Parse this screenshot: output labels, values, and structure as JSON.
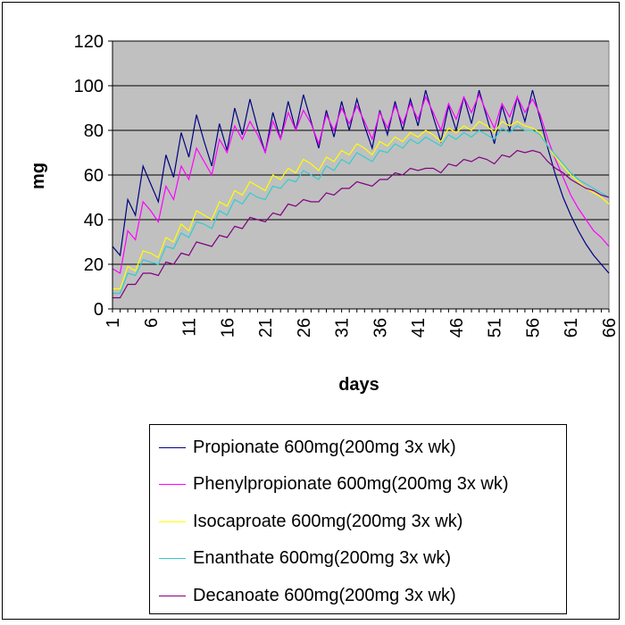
{
  "chart_data": {
    "type": "line",
    "title": "",
    "xlabel": "days",
    "ylabel": "mg",
    "xlim": [
      1,
      66
    ],
    "ylim": [
      0,
      120
    ],
    "yticks": [
      0,
      20,
      40,
      60,
      80,
      100,
      120
    ],
    "xticks": [
      1,
      6,
      11,
      16,
      21,
      26,
      31,
      36,
      41,
      46,
      51,
      56,
      61,
      66
    ],
    "grid": "horizontal",
    "plot_background": "#C0C0C0",
    "legend_position": "bottom",
    "series": [
      {
        "name": "Propionate 600mg(200mg 3x wk)",
        "color": "#000080",
        "values": [
          28,
          24,
          49,
          42,
          64,
          56,
          48,
          69,
          59,
          79,
          68,
          87,
          75,
          64,
          83,
          71,
          90,
          78,
          94,
          81,
          70,
          88,
          76,
          93,
          80,
          96,
          84,
          72,
          89,
          77,
          93,
          80,
          94,
          82,
          72,
          89,
          78,
          93,
          80,
          94,
          82,
          98,
          86,
          75,
          91,
          80,
          95,
          83,
          98,
          86,
          74,
          91,
          80,
          95,
          84,
          98,
          85,
          72,
          60,
          50,
          42,
          35,
          29,
          24,
          20,
          16
        ]
      },
      {
        "name": "Phenylpropionate 600mg(200mg 3x wk)",
        "color": "#FF00FF",
        "values": [
          18,
          16,
          35,
          31,
          48,
          44,
          39,
          55,
          49,
          64,
          58,
          72,
          66,
          60,
          76,
          70,
          82,
          76,
          84,
          78,
          70,
          84,
          76,
          88,
          80,
          89,
          83,
          74,
          87,
          80,
          90,
          83,
          91,
          84,
          76,
          88,
          81,
          91,
          83,
          92,
          85,
          95,
          88,
          80,
          92,
          85,
          95,
          88,
          96,
          88,
          81,
          92,
          86,
          95,
          88,
          94,
          87,
          76,
          67,
          59,
          51,
          45,
          40,
          35,
          32,
          28
        ]
      },
      {
        "name": "Isocaproate 600mg(200mg 3x wk)",
        "color": "#FFFF00",
        "values": [
          9,
          9,
          19,
          17,
          26,
          25,
          23,
          32,
          30,
          38,
          35,
          44,
          42,
          40,
          48,
          46,
          53,
          51,
          57,
          55,
          53,
          60,
          58,
          63,
          61,
          67,
          65,
          62,
          68,
          66,
          71,
          69,
          74,
          72,
          69,
          75,
          73,
          77,
          75,
          79,
          77,
          80,
          78,
          75,
          81,
          79,
          82,
          80,
          84,
          82,
          79,
          84,
          82,
          84,
          82,
          81,
          79,
          73,
          68,
          64,
          60,
          57,
          54,
          52,
          50,
          47
        ]
      },
      {
        "name": "Enanthate 600mg(200mg 3x wk)",
        "color": "#33CCCC",
        "values": [
          7,
          7,
          16,
          15,
          22,
          21,
          20,
          28,
          27,
          34,
          32,
          39,
          38,
          36,
          44,
          42,
          49,
          47,
          52,
          50,
          49,
          55,
          54,
          58,
          57,
          62,
          60,
          58,
          64,
          62,
          67,
          65,
          70,
          68,
          66,
          71,
          70,
          74,
          72,
          76,
          74,
          77,
          75,
          73,
          78,
          76,
          79,
          77,
          80,
          78,
          76,
          81,
          79,
          82,
          80,
          80,
          78,
          73,
          69,
          65,
          61,
          58,
          56,
          54,
          52,
          50
        ]
      },
      {
        "name": "Decanoate 600mg(200mg 3x wk)",
        "color": "#800080",
        "values": [
          5,
          5,
          11,
          11,
          16,
          16,
          15,
          21,
          20,
          25,
          24,
          30,
          29,
          28,
          33,
          32,
          37,
          36,
          41,
          40,
          39,
          43,
          42,
          47,
          46,
          49,
          48,
          48,
          52,
          51,
          54,
          54,
          57,
          56,
          55,
          58,
          58,
          61,
          60,
          63,
          62,
          63,
          63,
          61,
          65,
          64,
          67,
          66,
          68,
          67,
          65,
          69,
          68,
          71,
          70,
          71,
          70,
          66,
          63,
          61,
          58,
          56,
          54,
          53,
          51,
          50
        ]
      }
    ]
  }
}
